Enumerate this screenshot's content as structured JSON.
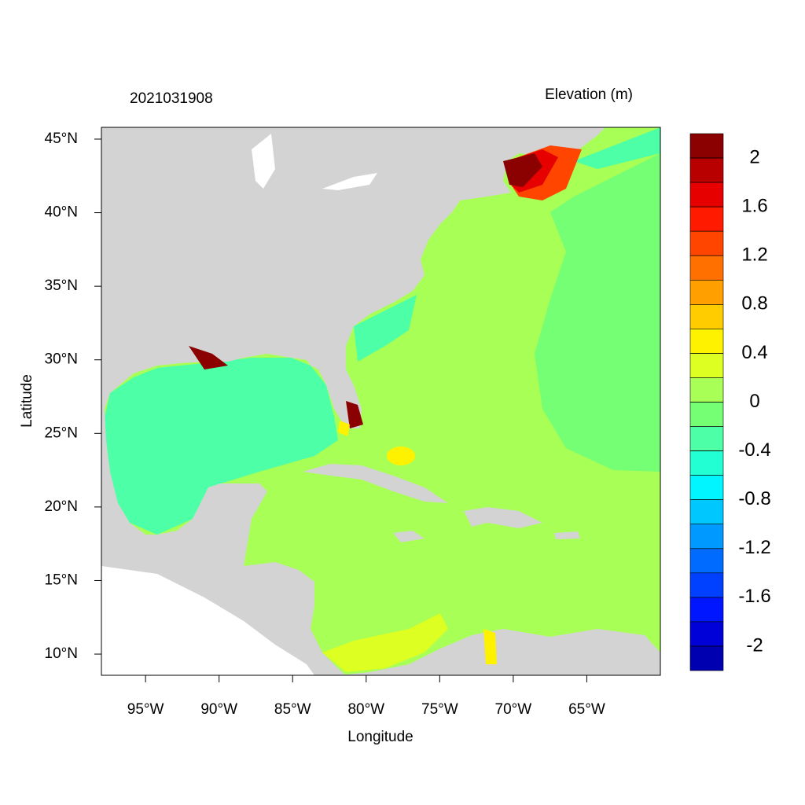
{
  "chart_data": {
    "type": "map",
    "title": "2021031908",
    "legend_title": "Elevation (m)",
    "xlabel": "Longitude",
    "ylabel": "Latitude",
    "xlim": [
      -98,
      -60
    ],
    "ylim": [
      8.56,
      45.8
    ],
    "xticks": [
      {
        "value": -95,
        "label": "95°W"
      },
      {
        "value": -90,
        "label": "90°W"
      },
      {
        "value": -85,
        "label": "85°W"
      },
      {
        "value": -80,
        "label": "80°W"
      },
      {
        "value": -75,
        "label": "75°W"
      },
      {
        "value": -70,
        "label": "70°W"
      },
      {
        "value": -65,
        "label": "65°W"
      }
    ],
    "yticks": [
      {
        "value": 10,
        "label": "10°N"
      },
      {
        "value": 15,
        "label": "15°N"
      },
      {
        "value": 20,
        "label": "20°N"
      },
      {
        "value": 25,
        "label": "25°N"
      },
      {
        "value": 30,
        "label": "30°N"
      },
      {
        "value": 35,
        "label": "35°N"
      },
      {
        "value": 40,
        "label": "40°N"
      },
      {
        "value": 45,
        "label": "45°N"
      }
    ],
    "colorbar": {
      "clim": [
        2.2,
        -2.2
      ],
      "ticks": [
        2,
        1.6,
        1.2,
        0.8,
        0.4,
        0,
        -0.4,
        -0.8,
        -1.2,
        -1.6,
        -2
      ],
      "colors": [
        "#8b0000",
        "#b80000",
        "#e60000",
        "#ff1a00",
        "#ff4500",
        "#ff7000",
        "#ff9f00",
        "#ffcc00",
        "#fff200",
        "#ddff22",
        "#a8ff55",
        "#74ff74",
        "#4dffa6",
        "#22ffd3",
        "#00f5ff",
        "#00c8ff",
        "#0099ff",
        "#006cff",
        "#0040ff",
        "#0016ff",
        "#0000d8",
        "#0000b0"
      ]
    }
  }
}
